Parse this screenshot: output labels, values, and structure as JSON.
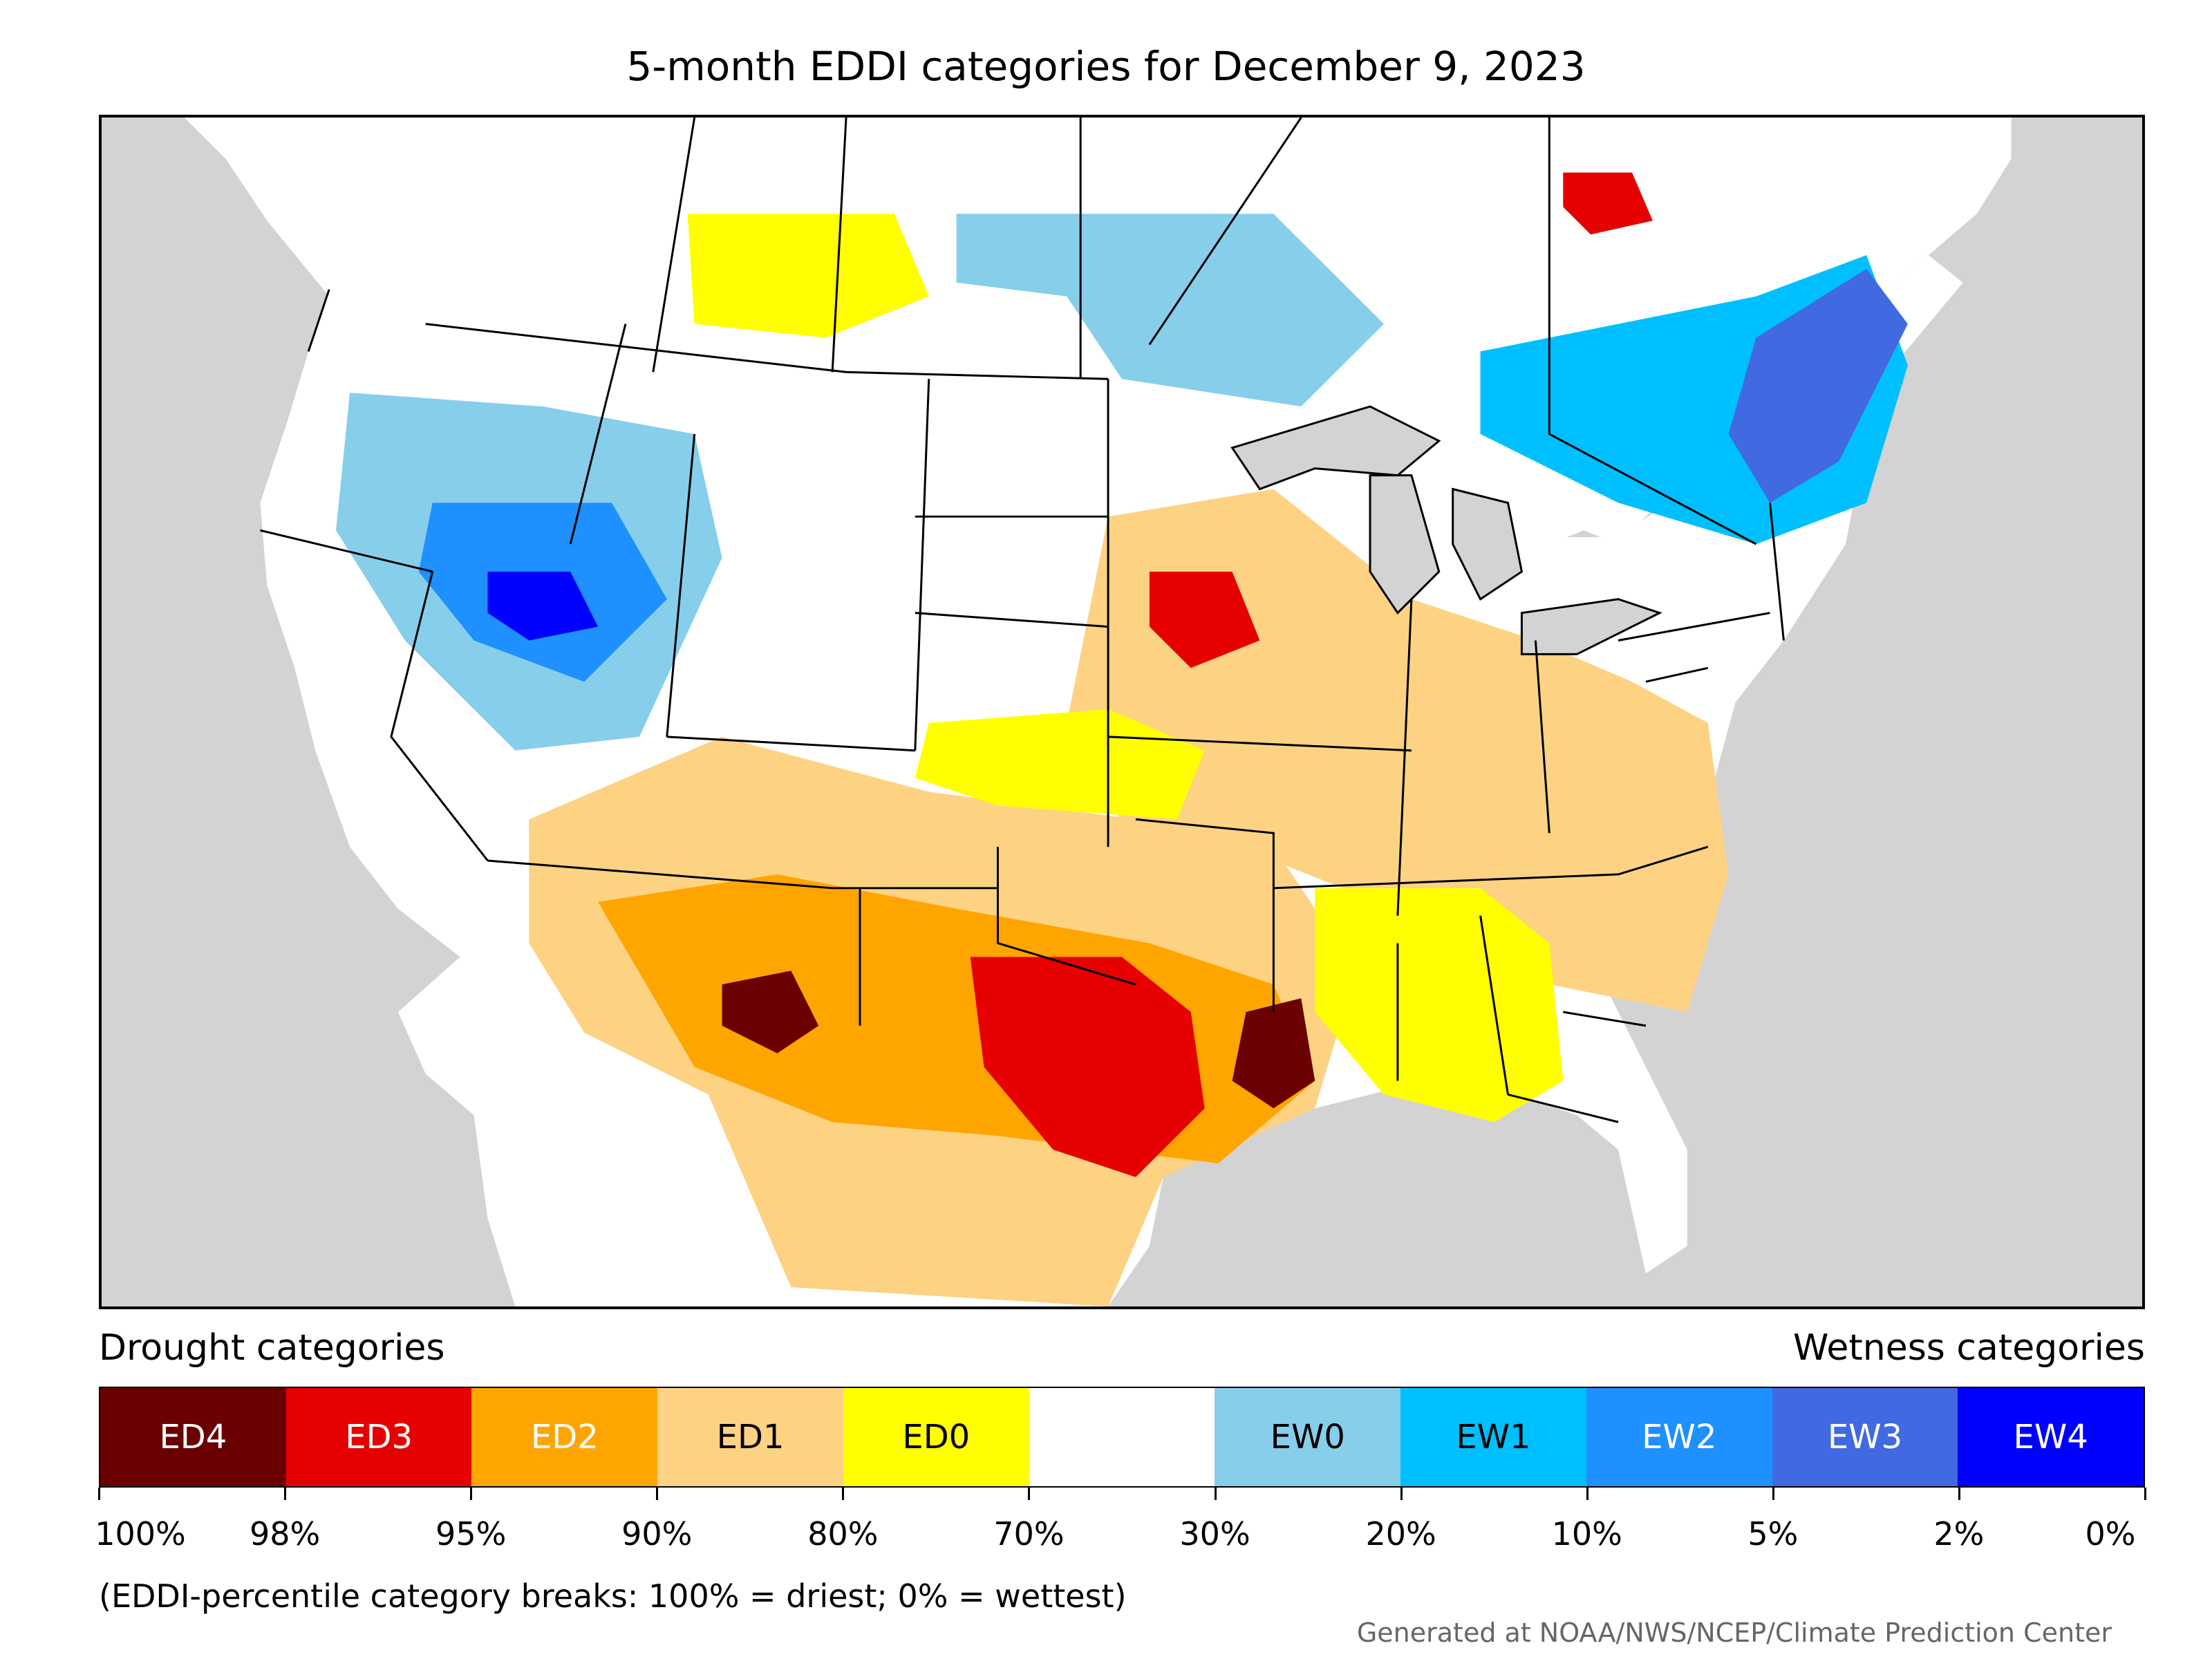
{
  "title": "5-month EDDI categories for December 9, 2023",
  "legend": {
    "left_heading": "Drought categories",
    "right_heading": "Wetness categories",
    "categories": [
      {
        "label": "ED4",
        "color": "#6b0000",
        "text_color": "#ffffff"
      },
      {
        "label": "ED3",
        "color": "#e60000",
        "text_color": "#ffffff"
      },
      {
        "label": "ED2",
        "color": "#ffa500",
        "text_color": "#ffffff"
      },
      {
        "label": "ED1",
        "color": "#fdd283",
        "text_color": "#000000"
      },
      {
        "label": "ED0",
        "color": "#ffff00",
        "text_color": "#000000"
      },
      {
        "label": "",
        "color": "#ffffff",
        "text_color": "#000000"
      },
      {
        "label": "EW0",
        "color": "#87ceeb",
        "text_color": "#000000"
      },
      {
        "label": "EW1",
        "color": "#00bfff",
        "text_color": "#000000"
      },
      {
        "label": "EW2",
        "color": "#1e90ff",
        "text_color": "#ffffff"
      },
      {
        "label": "EW3",
        "color": "#4169e1",
        "text_color": "#ffffff"
      },
      {
        "label": "EW4",
        "color": "#0000ff",
        "text_color": "#ffffff"
      }
    ],
    "tick_labels": [
      "100%",
      "98%",
      "95%",
      "90%",
      "80%",
      "70%",
      "30%",
      "20%",
      "10%",
      "5%",
      "2%",
      "0%"
    ]
  },
  "note": "(EDDI-percentile category breaks: 100% = driest; 0% = wettest)",
  "credit": "Generated at NOAA/NWS/NCEP/Climate Prediction Center",
  "map_colors": {
    "background": "#d3d3d3",
    "land": "#ffffff",
    "boundary": "#000000"
  }
}
